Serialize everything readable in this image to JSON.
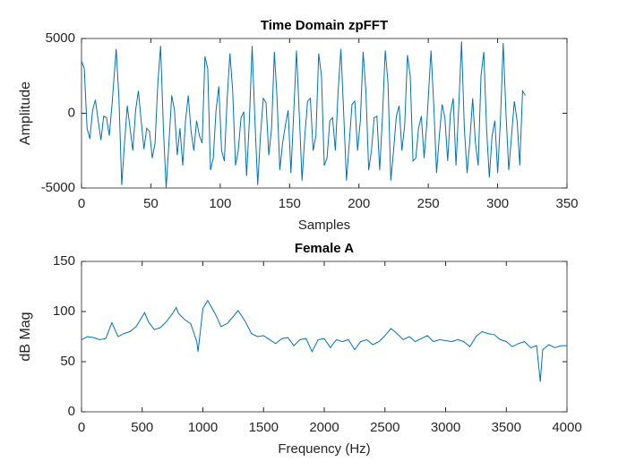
{
  "chart_data": [
    {
      "type": "line",
      "title": "Time Domain zpFFT",
      "x_label": "Samples",
      "y_label": "Amplitude",
      "xlim": [
        0,
        350
      ],
      "xticks": [
        0,
        50,
        100,
        150,
        200,
        250,
        300,
        350
      ],
      "ylim": [
        -5000,
        5000
      ],
      "yticks": [
        -5000,
        0,
        5000
      ],
      "series": [
        {
          "color": "#0072bd",
          "x": [
            0,
            2,
            4,
            6,
            8,
            10,
            12,
            14,
            16,
            18,
            20,
            22,
            25,
            27,
            29,
            31,
            33,
            35,
            37,
            39,
            41,
            43,
            45,
            47,
            49,
            51,
            53,
            55,
            57,
            59,
            61,
            63,
            65,
            67,
            69,
            71,
            73,
            75,
            77,
            79,
            81,
            83,
            85,
            87,
            89,
            91,
            93,
            95,
            97,
            99,
            101,
            103,
            105,
            107,
            109,
            111,
            113,
            115,
            117,
            119,
            121,
            123,
            125,
            127,
            129,
            131,
            133,
            135,
            137,
            139,
            141,
            143,
            145,
            147,
            149,
            151,
            153,
            155,
            157,
            159,
            161,
            163,
            165,
            167,
            169,
            171,
            173,
            175,
            177,
            179,
            181,
            183,
            185,
            187,
            189,
            191,
            193,
            195,
            197,
            199,
            201,
            203,
            205,
            207,
            209,
            211,
            213,
            215,
            217,
            219,
            221,
            223,
            225,
            227,
            229,
            231,
            233,
            235,
            237,
            239,
            241,
            243,
            245,
            247,
            249,
            252,
            254,
            256,
            258,
            260,
            262,
            264,
            266,
            268,
            270,
            272,
            274,
            276,
            278,
            280,
            282,
            284,
            286,
            288,
            290,
            292,
            294,
            296,
            298,
            300,
            302,
            304,
            306,
            308,
            310,
            312,
            314,
            316,
            318,
            320
          ],
          "values": [
            3500,
            3000,
            -1000,
            -1700,
            200,
            900,
            -500,
            -1800,
            -200,
            -300,
            -1500,
            600,
            4300,
            1000,
            -4800,
            -2000,
            500,
            -1000,
            -2500,
            200,
            1500,
            -500,
            -2400,
            -1000,
            -1200,
            -3000,
            -2000,
            2000,
            4500,
            -1000,
            -5000,
            -2000,
            1200,
            200,
            -2800,
            -1000,
            -3500,
            -500,
            1200,
            -1200,
            -2500,
            -500,
            -1500,
            -2000,
            3800,
            3000,
            -3800,
            -3000,
            200,
            1800,
            -2500,
            -3200,
            1000,
            4000,
            1500,
            -3500,
            -2500,
            -300,
            100,
            -4200,
            -500,
            4500,
            -500,
            -4800,
            -1500,
            1000,
            700,
            -2800,
            -1000,
            4100,
            1000,
            -3800,
            -2000,
            -800,
            200,
            -4000,
            0,
            4200,
            0,
            -4500,
            -1500,
            800,
            1000,
            -2500,
            -1500,
            4000,
            2500,
            -3500,
            -3000,
            -500,
            -300,
            -2500,
            1500,
            4300,
            0,
            -4500,
            -2000,
            600,
            800,
            -2500,
            -500,
            4100,
            1500,
            -3800,
            -2500,
            -300,
            -200,
            -3800,
            -200,
            4200,
            2000,
            -4500,
            -2500,
            -200,
            500,
            -2500,
            -800,
            3900,
            2500,
            -3200,
            -3000,
            -1000,
            -200,
            -3000,
            -600,
            4200,
            500,
            -4000,
            -1500,
            600,
            -300,
            -3200,
            0,
            1000,
            -3500,
            500,
            4800,
            -1000,
            -4000,
            -1800,
            1000,
            -2000,
            -3500,
            2500,
            4100,
            -1000,
            -4300,
            -1500,
            -500,
            -4000,
            -500,
            4700,
            0,
            -3800,
            -1500,
            800,
            -500,
            -3500,
            1500,
            1200
          ]
        }
      ]
    },
    {
      "type": "line",
      "title": "Female A",
      "x_label": "Frequency (Hz)",
      "y_label": "dB Mag",
      "xlim": [
        0,
        4000
      ],
      "xticks": [
        0,
        500,
        1000,
        1500,
        2000,
        2500,
        3000,
        3500,
        4000
      ],
      "ylim": [
        0,
        150
      ],
      "yticks": [
        0,
        50,
        100,
        150
      ],
      "series": [
        {
          "color": "#0072bd",
          "x": [
            0,
            50,
            100,
            150,
            200,
            250,
            300,
            350,
            400,
            450,
            500,
            520,
            550,
            600,
            650,
            700,
            750,
            780,
            800,
            850,
            900,
            950,
            960,
            1000,
            1040,
            1100,
            1150,
            1200,
            1250,
            1290,
            1350,
            1400,
            1450,
            1500,
            1550,
            1600,
            1650,
            1700,
            1750,
            1800,
            1850,
            1900,
            1950,
            2000,
            2050,
            2100,
            2150,
            2200,
            2250,
            2300,
            2350,
            2400,
            2450,
            2500,
            2550,
            2600,
            2650,
            2700,
            2750,
            2800,
            2850,
            2900,
            2950,
            3000,
            3050,
            3100,
            3150,
            3200,
            3250,
            3300,
            3350,
            3400,
            3450,
            3500,
            3550,
            3600,
            3650,
            3700,
            3750,
            3780,
            3800,
            3850,
            3900,
            3950,
            4000
          ],
          "values": [
            72,
            75,
            74,
            72,
            73,
            89,
            75,
            78,
            80,
            85,
            95,
            99,
            90,
            82,
            84,
            90,
            98,
            104,
            98,
            92,
            88,
            70,
            60,
            103,
            111,
            98,
            85,
            88,
            95,
            101,
            90,
            78,
            75,
            76,
            72,
            68,
            73,
            74,
            66,
            72,
            73,
            60,
            72,
            73,
            64,
            72,
            70,
            72,
            62,
            70,
            72,
            67,
            70,
            76,
            83,
            78,
            72,
            75,
            70,
            73,
            76,
            70,
            72,
            71,
            70,
            72,
            70,
            65,
            75,
            80,
            78,
            77,
            72,
            70,
            65,
            68,
            70,
            64,
            66,
            30,
            62,
            67,
            64,
            66,
            66
          ]
        }
      ]
    }
  ]
}
